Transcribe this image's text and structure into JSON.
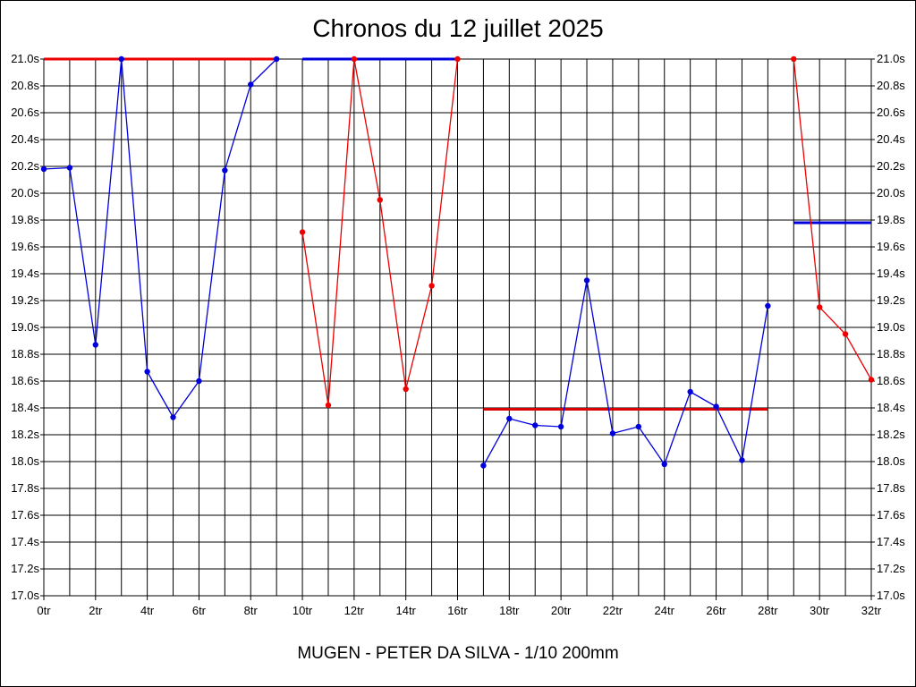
{
  "chart_data": {
    "type": "line",
    "title": "Chronos du 12 juillet 2025",
    "subtitle": "MUGEN - PETER DA SILVA - 1/10 200mm",
    "xlabel": "",
    "ylabel": "",
    "xlim": [
      0,
      32
    ],
    "ylim": [
      17.0,
      21.0
    ],
    "grid": true,
    "x_tick_labels": [
      "0tr",
      "2tr",
      "4tr",
      "6tr",
      "8tr",
      "10tr",
      "12tr",
      "14tr",
      "16tr",
      "18tr",
      "20tr",
      "22tr",
      "24tr",
      "26tr",
      "28tr",
      "30tr",
      "32tr"
    ],
    "y_tick_labels": [
      "17.0s",
      "17.2s",
      "17.4s",
      "17.6s",
      "17.8s",
      "18.0s",
      "18.2s",
      "18.4s",
      "18.6s",
      "18.8s",
      "19.0s",
      "19.2s",
      "19.4s",
      "19.6s",
      "19.8s",
      "20.0s",
      "20.2s",
      "20.4s",
      "20.6s",
      "20.8s",
      "21.0s"
    ],
    "series": [
      {
        "color": "#0000dd",
        "points": [
          [
            0,
            20.18
          ],
          [
            1,
            20.19
          ],
          [
            2,
            18.87
          ],
          [
            3,
            21.0
          ],
          [
            4,
            18.67
          ],
          [
            5,
            18.33
          ],
          [
            6,
            18.6
          ],
          [
            7,
            20.17
          ],
          [
            8,
            20.81
          ],
          [
            9,
            21.0
          ]
        ]
      },
      {
        "color": "#ee0000",
        "points": [
          [
            10,
            19.71
          ],
          [
            11,
            18.42
          ],
          [
            12,
            21.0
          ],
          [
            13,
            19.95
          ],
          [
            14,
            18.54
          ],
          [
            15,
            19.31
          ],
          [
            16,
            21.0
          ]
        ]
      },
      {
        "color": "#0000dd",
        "points": [
          [
            17,
            17.97
          ],
          [
            18,
            18.32
          ],
          [
            19,
            18.27
          ],
          [
            20,
            18.26
          ],
          [
            21,
            19.35
          ],
          [
            22,
            18.21
          ],
          [
            23,
            18.26
          ],
          [
            24,
            17.98
          ],
          [
            25,
            18.52
          ],
          [
            26,
            18.41
          ],
          [
            27,
            18.01
          ],
          [
            28,
            19.16
          ]
        ]
      },
      {
        "color": "#ee0000",
        "points": [
          [
            29,
            21.0
          ],
          [
            30,
            19.15
          ],
          [
            31,
            18.95
          ],
          [
            32,
            18.61
          ]
        ]
      }
    ],
    "average_lines": [
      {
        "color": "#ee0000",
        "x": [
          0,
          9
        ],
        "y": 21.0
      },
      {
        "color": "#0000dd",
        "x": [
          10,
          16
        ],
        "y": 21.0
      },
      {
        "color": "#dd0000",
        "x": [
          17,
          28
        ],
        "y": 18.39
      },
      {
        "color": "#0000dd",
        "x": [
          29,
          32
        ],
        "y": 19.78
      }
    ]
  }
}
